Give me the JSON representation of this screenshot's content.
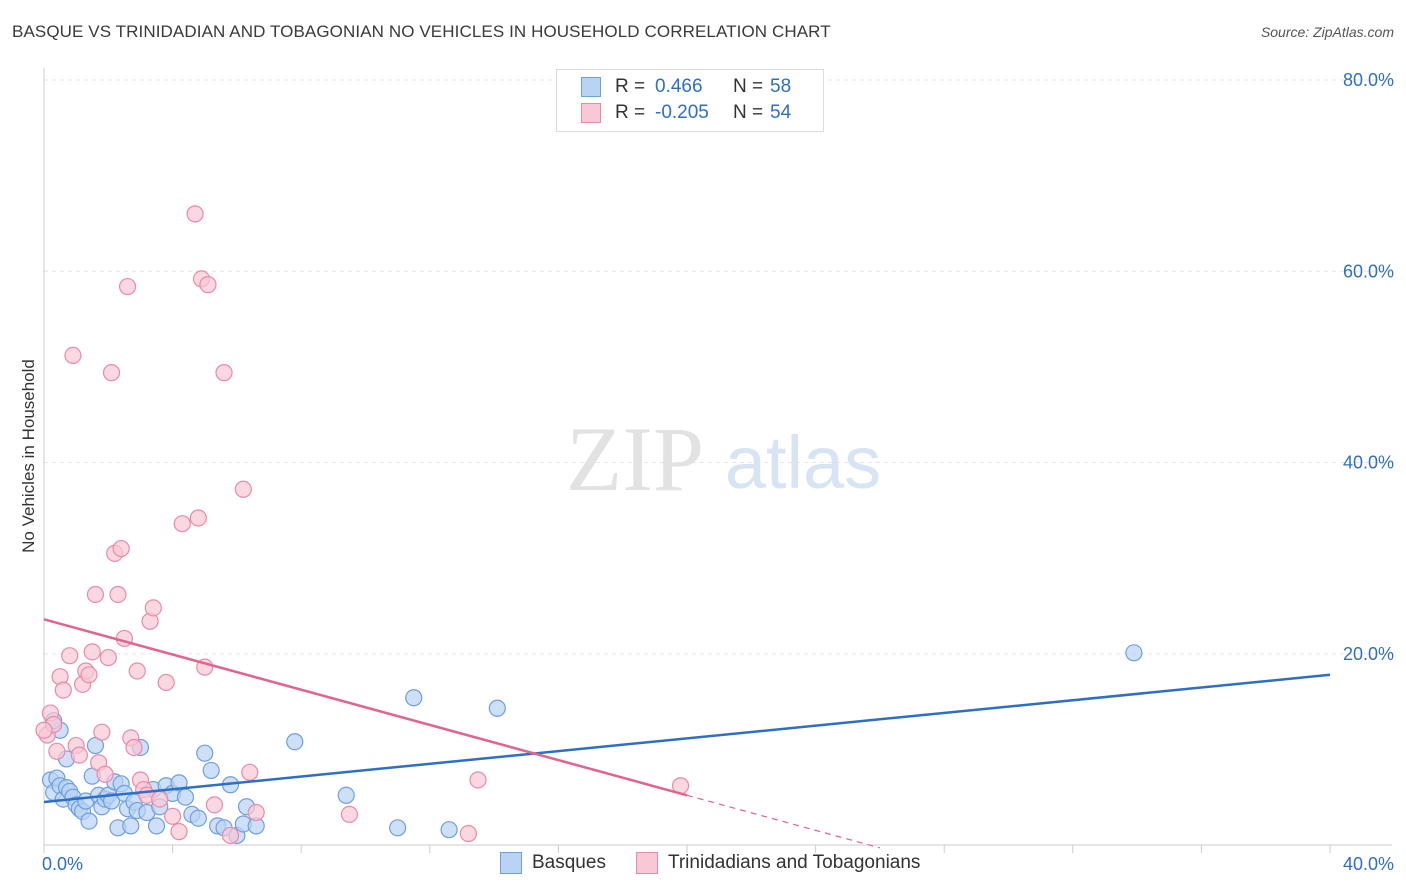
{
  "title": "BASQUE VS TRINIDADIAN AND TOBAGONIAN NO VEHICLES IN HOUSEHOLD CORRELATION CHART",
  "source": "Source: ZipAtlas.com",
  "watermark": {
    "zip": "ZIP",
    "atlas": "atlas"
  },
  "legend": {
    "rows": [
      {
        "r_label": "R =",
        "r_value": "0.466",
        "n_label": "N =",
        "n_value": "58",
        "fill": "#b9d3f4",
        "stroke": "#6f9fdc"
      },
      {
        "r_label": "R =",
        "r_value": "-0.205",
        "n_label": "N =",
        "n_value": "54",
        "fill": "#f8c8d6",
        "stroke": "#e98aa8"
      }
    ]
  },
  "bottom_legend": [
    {
      "label": "Basques",
      "fill": "#b9d3f4",
      "stroke": "#6f9fdc"
    },
    {
      "label": "Trinidadians and Tobagonians",
      "fill": "#f8c8d6",
      "stroke": "#e98aa8"
    }
  ],
  "chart_data": {
    "type": "scatter",
    "title": "BASQUE VS TRINIDADIAN AND TOBAGONIAN NO VEHICLES IN HOUSEHOLD CORRELATION CHART",
    "xlabel": "",
    "ylabel": "No Vehicles in Household",
    "xlim": [
      0,
      40
    ],
    "ylim": [
      0,
      80
    ],
    "x_tick_labels": [
      "0.0%",
      "40.0%"
    ],
    "y_tick_labels": [
      "20.0%",
      "40.0%",
      "60.0%",
      "80.0%"
    ],
    "y_ticks": [
      20,
      40,
      60,
      80
    ],
    "grid": true,
    "colors": {
      "basques": "#2e6fc4",
      "trinidadians": "#e0648e",
      "axis_label": "#2e6fc4"
    },
    "series": [
      {
        "name": "Basques",
        "trend": {
          "x": [
            0,
            40
          ],
          "y": [
            4.5,
            17.8
          ]
        },
        "points": [
          [
            0.2,
            6.8
          ],
          [
            0.3,
            5.5
          ],
          [
            0.4,
            7.0
          ],
          [
            0.5,
            6.2
          ],
          [
            0.6,
            4.8
          ],
          [
            0.7,
            6.0
          ],
          [
            0.8,
            5.6
          ],
          [
            0.9,
            5.0
          ],
          [
            1.0,
            4.2
          ],
          [
            1.1,
            3.8
          ],
          [
            1.2,
            3.5
          ],
          [
            1.3,
            4.6
          ],
          [
            1.4,
            2.5
          ],
          [
            1.5,
            7.2
          ],
          [
            1.6,
            10.4
          ],
          [
            1.7,
            5.2
          ],
          [
            1.8,
            4.0
          ],
          [
            1.9,
            4.8
          ],
          [
            2.0,
            5.2
          ],
          [
            2.1,
            4.6
          ],
          [
            2.2,
            6.6
          ],
          [
            2.3,
            1.8
          ],
          [
            2.4,
            6.4
          ],
          [
            2.5,
            5.4
          ],
          [
            2.6,
            3.8
          ],
          [
            2.7,
            2.0
          ],
          [
            2.8,
            4.5
          ],
          [
            2.9,
            3.6
          ],
          [
            3.0,
            10.2
          ],
          [
            3.2,
            3.4
          ],
          [
            3.4,
            5.8
          ],
          [
            3.5,
            2.0
          ],
          [
            3.6,
            4.0
          ],
          [
            3.8,
            6.2
          ],
          [
            4.0,
            5.4
          ],
          [
            4.2,
            6.5
          ],
          [
            4.4,
            5.0
          ],
          [
            4.6,
            3.2
          ],
          [
            4.8,
            2.8
          ],
          [
            5.0,
            9.6
          ],
          [
            5.2,
            7.8
          ],
          [
            5.4,
            2.0
          ],
          [
            5.6,
            1.8
          ],
          [
            5.8,
            6.3
          ],
          [
            6.0,
            1.0
          ],
          [
            6.2,
            2.2
          ],
          [
            6.3,
            4.0
          ],
          [
            6.6,
            2.0
          ],
          [
            7.8,
            10.8
          ],
          [
            9.4,
            5.2
          ],
          [
            11.0,
            1.8
          ],
          [
            11.5,
            15.4
          ],
          [
            12.6,
            1.6
          ],
          [
            14.1,
            14.3
          ],
          [
            33.9,
            20.1
          ],
          [
            0.5,
            12.0
          ],
          [
            0.7,
            9.0
          ],
          [
            0.3,
            13.0
          ]
        ]
      },
      {
        "name": "Trinidadians and Tobagonians",
        "trend": {
          "x": [
            0,
            20
          ],
          "y": [
            23.6,
            5.2
          ]
        },
        "trend_dashed": {
          "x": [
            20,
            26
          ],
          "y": [
            5.2,
            -0.3
          ]
        },
        "points": [
          [
            0.1,
            11.5
          ],
          [
            0.2,
            13.8
          ],
          [
            0.3,
            12.6
          ],
          [
            0.4,
            9.8
          ],
          [
            0.5,
            17.6
          ],
          [
            0.6,
            16.2
          ],
          [
            0.8,
            19.8
          ],
          [
            0.9,
            51.2
          ],
          [
            1.0,
            10.4
          ],
          [
            1.1,
            9.4
          ],
          [
            1.2,
            16.8
          ],
          [
            1.3,
            18.2
          ],
          [
            1.4,
            17.8
          ],
          [
            1.5,
            20.2
          ],
          [
            1.6,
            26.2
          ],
          [
            1.7,
            8.6
          ],
          [
            1.8,
            11.8
          ],
          [
            1.9,
            7.4
          ],
          [
            2.0,
            19.6
          ],
          [
            2.1,
            49.4
          ],
          [
            2.2,
            30.5
          ],
          [
            2.3,
            26.2
          ],
          [
            2.4,
            31.0
          ],
          [
            2.5,
            21.6
          ],
          [
            2.6,
            58.4
          ],
          [
            2.7,
            11.2
          ],
          [
            2.8,
            10.2
          ],
          [
            2.9,
            18.2
          ],
          [
            3.0,
            6.8
          ],
          [
            3.1,
            5.8
          ],
          [
            3.2,
            5.2
          ],
          [
            3.3,
            23.4
          ],
          [
            3.4,
            24.8
          ],
          [
            3.6,
            4.8
          ],
          [
            3.8,
            17.0
          ],
          [
            4.0,
            3.0
          ],
          [
            4.2,
            1.4
          ],
          [
            4.3,
            33.6
          ],
          [
            4.7,
            66.0
          ],
          [
            4.8,
            34.2
          ],
          [
            4.9,
            59.2
          ],
          [
            5.0,
            18.6
          ],
          [
            5.1,
            58.6
          ],
          [
            5.3,
            4.2
          ],
          [
            5.6,
            49.4
          ],
          [
            5.8,
            1.0
          ],
          [
            6.2,
            37.2
          ],
          [
            6.4,
            7.6
          ],
          [
            6.6,
            3.4
          ],
          [
            9.5,
            3.2
          ],
          [
            13.2,
            1.2
          ],
          [
            13.5,
            6.8
          ],
          [
            19.8,
            6.2
          ],
          [
            0.0,
            12.0
          ]
        ]
      }
    ]
  }
}
